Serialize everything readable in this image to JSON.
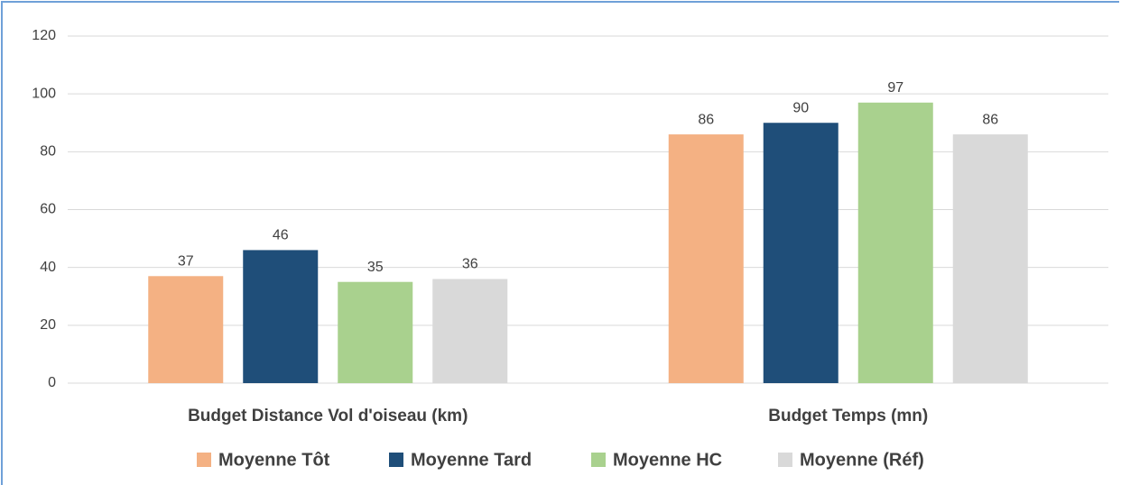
{
  "chart_data": {
    "type": "bar",
    "categories": [
      "Budget Distance Vol d'oiseau (km)",
      "Budget Temps (mn)"
    ],
    "series": [
      {
        "name": "Moyenne Tôt",
        "color": "#f4b183",
        "values": [
          37,
          86
        ]
      },
      {
        "name": "Moyenne Tard",
        "color": "#1f4e79",
        "values": [
          46,
          90
        ]
      },
      {
        "name": "Moyenne HC",
        "color": "#a9d18e",
        "values": [
          35,
          97
        ]
      },
      {
        "name": "Moyenne (Réf)",
        "color": "#d9d9d9",
        "values": [
          36,
          86
        ]
      }
    ],
    "ylim": [
      0,
      120
    ],
    "yticks": [
      0,
      20,
      40,
      60,
      80,
      100,
      120
    ],
    "grid": true,
    "legend": "bottom"
  }
}
